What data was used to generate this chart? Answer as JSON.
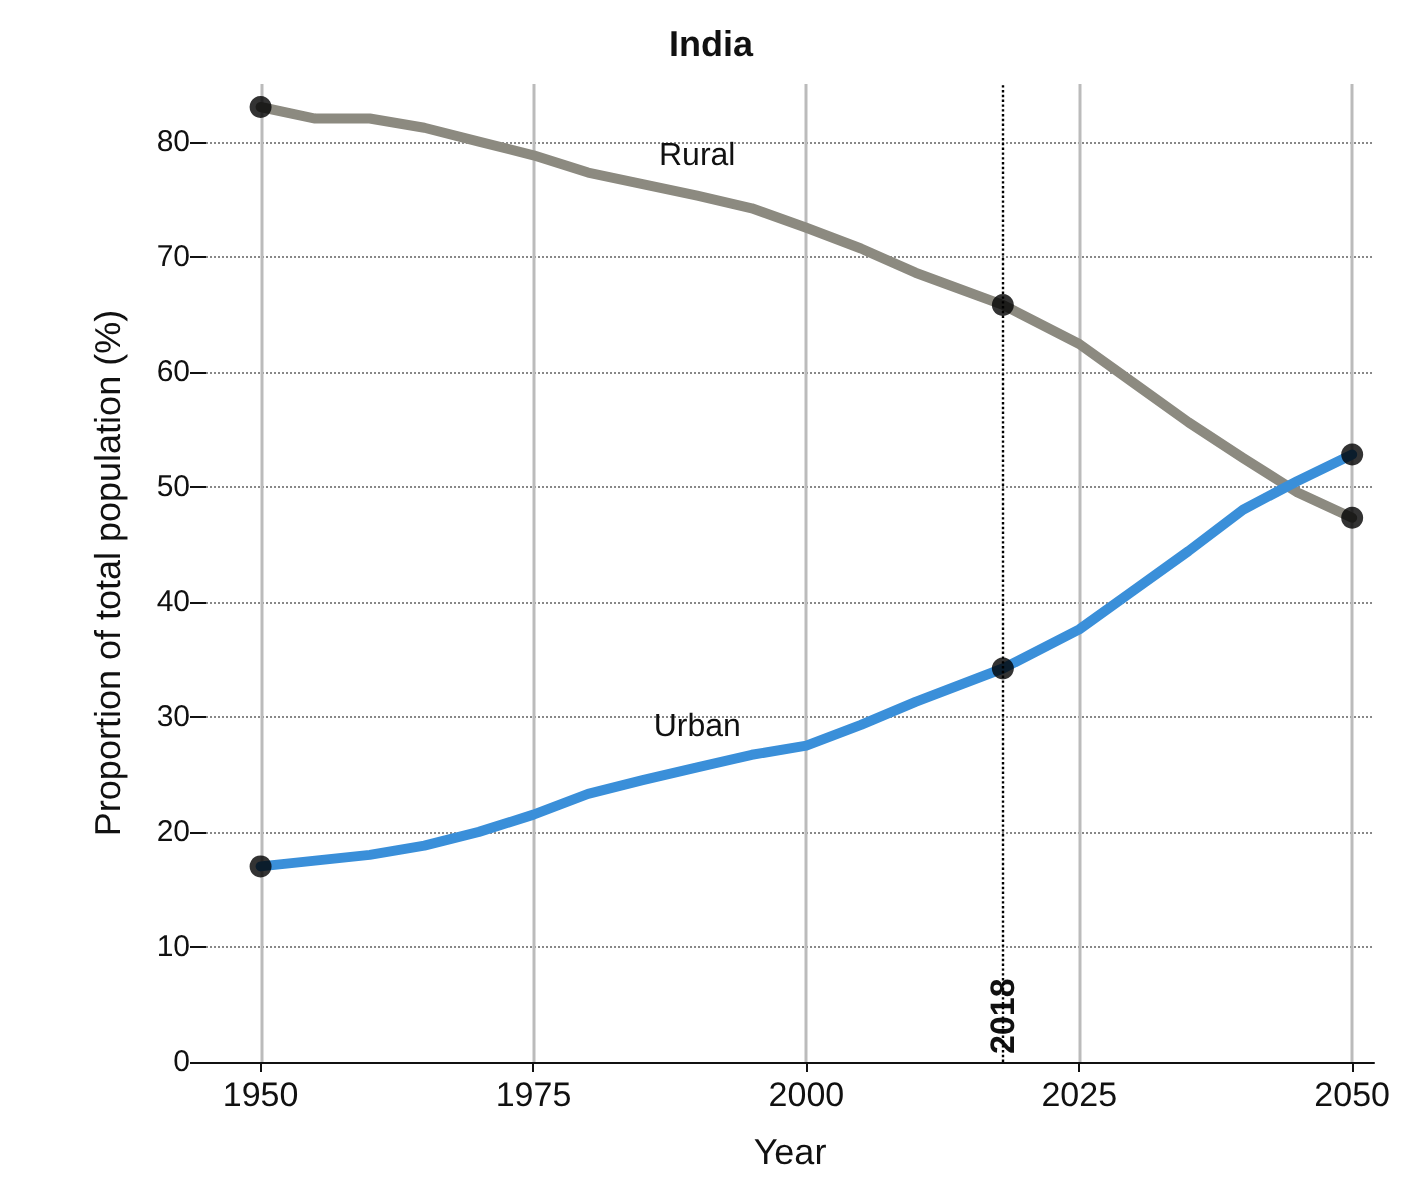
{
  "chart_data": {
    "type": "line",
    "title": "India",
    "xlabel": "Year",
    "ylabel": "Proportion of total population (%)",
    "x": [
      1950,
      1955,
      1960,
      1965,
      1970,
      1975,
      1980,
      1985,
      1990,
      1995,
      2000,
      2005,
      2010,
      2018,
      2025,
      2030,
      2035,
      2040,
      2045,
      2050
    ],
    "series": [
      {
        "name": "Rural",
        "color": "#8c8a80",
        "values": [
          83,
          82,
          82,
          81.2,
          80,
          78.8,
          77.3,
          76.3,
          75.3,
          74.2,
          72.5,
          70.7,
          68.6,
          65.8,
          62.4,
          59,
          55.6,
          52.5,
          49.5,
          47.3
        ]
      },
      {
        "name": "Urban",
        "color": "#3a8fd9",
        "values": [
          17,
          17.5,
          18,
          18.8,
          20,
          21.5,
          23.3,
          24.5,
          25.6,
          26.7,
          27.5,
          29.3,
          31.3,
          34.2,
          37.6,
          41,
          44.4,
          48,
          50.5,
          52.8
        ]
      },
      {
        "type": "scatter",
        "color": "#000000",
        "marker": "circle",
        "x": [
          1950,
          2018,
          2050
        ],
        "values": [
          83,
          65.8,
          47.3
        ]
      },
      {
        "type": "scatter",
        "color": "#000000",
        "marker": "circle",
        "x": [
          1950,
          2018,
          2050
        ],
        "values": [
          17,
          34.2,
          52.8
        ]
      }
    ],
    "xlim": [
      1945,
      2052
    ],
    "xticks": [
      1950,
      1975,
      2000,
      2025,
      2050
    ],
    "ylim": [
      0,
      85
    ],
    "yticks": [
      0,
      10,
      20,
      30,
      40,
      50,
      60,
      70,
      80
    ],
    "grid": true,
    "line_style": "solid",
    "ref_lines": [
      {
        "axis": "x",
        "value": 2018,
        "label": "2018",
        "color": "#000000",
        "line_style": "dotted"
      }
    ],
    "legend": false
  }
}
